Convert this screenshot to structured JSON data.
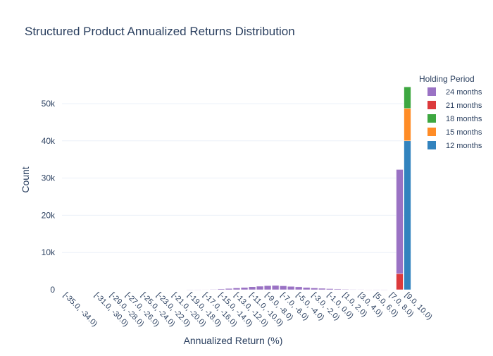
{
  "chart_data": {
    "type": "bar",
    "barmode": "stack",
    "title": "Structured Product Annualized Returns Distribution",
    "xlabel": "Annualized Return (%)",
    "ylabel": "Count",
    "ylim": [
      0,
      57000
    ],
    "yticks": [
      0,
      10000,
      20000,
      30000,
      40000,
      50000
    ],
    "ytick_labels": [
      "0",
      "10k",
      "20k",
      "30k",
      "40k",
      "50k"
    ],
    "categories": [
      "[-35.0, -34.0)",
      "[-34.0, -33.0)",
      "[-33.0, -32.0)",
      "[-32.0, -31.0)",
      "[-31.0, -30.0)",
      "[-30.0, -29.0)",
      "[-29.0, -28.0)",
      "[-28.0, -27.0)",
      "[-27.0, -26.0)",
      "[-26.0, -25.0)",
      "[-25.0, -24.0)",
      "[-24.0, -23.0)",
      "[-23.0, -22.0)",
      "[-22.0, -21.0)",
      "[-21.0, -20.0)",
      "[-20.0, -19.0)",
      "[-19.0, -18.0)",
      "[-18.0, -17.0)",
      "[-17.0, -16.0)",
      "[-16.0, -15.0)",
      "[-15.0, -14.0)",
      "[-14.0, -13.0)",
      "[-13.0, -12.0)",
      "[-12.0, -11.0)",
      "[-11.0, -10.0)",
      "[-10.0, -9.0)",
      "[-9.0, -8.0)",
      "[-8.0, -7.0)",
      "[-7.0, -6.0)",
      "[-6.0, -5.0)",
      "[-5.0, -4.0)",
      "[-4.0, -3.0)",
      "[-3.0, -2.0)",
      "[-2.0, -1.0)",
      "[-1.0, 0.0)",
      "[0.0, 1.0)",
      "[1.0, 2.0)",
      "[2.0, 3.0)",
      "[3.0, 4.0)",
      "[4.0, 5.0)",
      "[5.0, 6.0)",
      "[6.0, 7.0)",
      "[7.0, 8.0)",
      "[8.0, 9.0)",
      "[9.0, 10.0)"
    ],
    "visible_tick_labels": [
      "[-35.0, -34.0)",
      "[-31.0, -30.0)",
      "[-29.0, -28.0)",
      "[-27.0, -26.0)",
      "[-25.0, -24.0)",
      "[-23.0, -22.0)",
      "[-21.0, -20.0)",
      "[-19.0, -18.0)",
      "[-17.0, -16.0)",
      "[-15.0, -14.0)",
      "[-13.0, -12.0)",
      "[-11.0, -10.0)",
      "[-9.0, -8.0)",
      "[-7.0, -6.0)",
      "[-5.0, -4.0)",
      "[-3.0, -2.0)",
      "[-1.0, 0.0)",
      "[1.0, 2.0)",
      "[3.0, 4.0)",
      "[5.0, 6.0)",
      "[7.0, 8.0)",
      "[9.0, 10.0)"
    ],
    "legend_title": "Holding Period",
    "legend_position": "top-right",
    "series": [
      {
        "name": "12 months",
        "color": "#3283be",
        "values": [
          0,
          0,
          0,
          0,
          0,
          0,
          0,
          0,
          0,
          0,
          0,
          0,
          0,
          0,
          0,
          0,
          0,
          0,
          0,
          0,
          0,
          0,
          0,
          0,
          0,
          0,
          0,
          0,
          0,
          0,
          0,
          0,
          0,
          0,
          0,
          0,
          0,
          0,
          0,
          0,
          0,
          0,
          0,
          0,
          40000
        ]
      },
      {
        "name": "15 months",
        "color": "#ff8c26",
        "values": [
          0,
          0,
          0,
          0,
          0,
          0,
          0,
          0,
          0,
          0,
          0,
          0,
          0,
          0,
          0,
          0,
          0,
          0,
          0,
          0,
          0,
          0,
          0,
          0,
          0,
          0,
          0,
          0,
          0,
          0,
          0,
          0,
          0,
          0,
          0,
          0,
          0,
          0,
          0,
          0,
          0,
          0,
          0,
          0,
          8700
        ]
      },
      {
        "name": "18 months",
        "color": "#3da740",
        "values": [
          0,
          0,
          0,
          0,
          0,
          0,
          0,
          0,
          0,
          0,
          0,
          0,
          0,
          0,
          0,
          0,
          0,
          0,
          0,
          0,
          0,
          0,
          0,
          0,
          0,
          0,
          0,
          0,
          0,
          0,
          0,
          0,
          0,
          0,
          0,
          0,
          0,
          0,
          0,
          0,
          0,
          0,
          0,
          0,
          5800
        ]
      },
      {
        "name": "21 months",
        "color": "#dc3a3c",
        "values": [
          0,
          0,
          0,
          0,
          0,
          0,
          0,
          0,
          0,
          0,
          0,
          0,
          0,
          0,
          0,
          0,
          0,
          0,
          0,
          0,
          0,
          0,
          0,
          0,
          0,
          0,
          0,
          0,
          0,
          0,
          0,
          0,
          0,
          0,
          0,
          0,
          0,
          0,
          0,
          0,
          0,
          0,
          0,
          4300,
          0
        ]
      },
      {
        "name": "24 months",
        "color": "#9a72c4",
        "values": [
          0,
          0,
          0,
          0,
          0,
          0,
          0,
          0,
          0,
          0,
          0,
          0,
          0,
          0,
          0,
          0,
          10,
          30,
          60,
          120,
          220,
          340,
          480,
          620,
          800,
          950,
          1100,
          1150,
          1050,
          900,
          780,
          620,
          480,
          380,
          290,
          210,
          150,
          100,
          70,
          40,
          20,
          15,
          0,
          28000,
          0
        ]
      }
    ],
    "legend_order": [
      "24 months",
      "21 months",
      "18 months",
      "15 months",
      "12 months"
    ],
    "grid": true
  }
}
